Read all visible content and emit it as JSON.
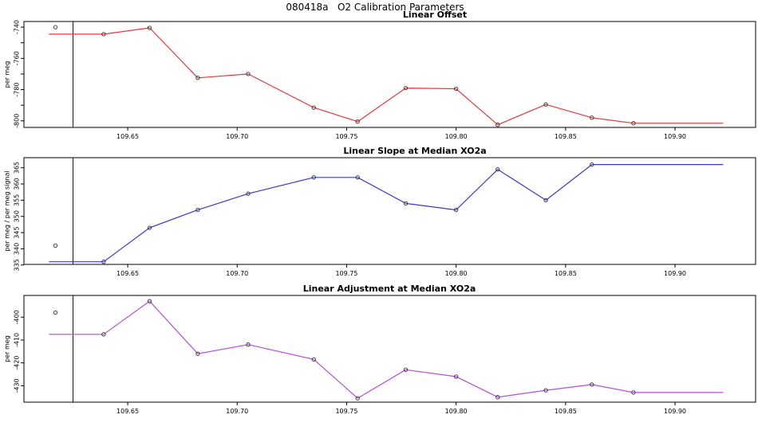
{
  "page": {
    "title": "080418a   O2 Calibration Parameters"
  },
  "x_axis": {
    "xlim": [
      109.6026,
      109.9368
    ],
    "ticks": [
      109.65,
      109.7,
      109.75,
      109.8,
      109.85,
      109.9
    ],
    "tick_labels": [
      "109.65",
      "109.70",
      "109.75",
      "109.80",
      "109.85",
      "109.90"
    ]
  },
  "colors": {
    "offset_red": "#e43a3a",
    "slope_blue": "#3b3bd0",
    "adjustment_purple": "#b44fd9",
    "axis_black": "#000000",
    "marker_outline": "#333333"
  },
  "chart_data": [
    {
      "type": "line",
      "title": "Linear Offset",
      "ylabel": "per meg",
      "line_color": "#e43a3a",
      "marker": "open-circle",
      "ylim": [
        -804.2,
        -736.4
      ],
      "yticks": [
        -800,
        -780,
        -760,
        -740
      ],
      "ytick_labels": [
        "-800",
        "-780",
        "-760",
        "-740"
      ],
      "yticks_minor": [
        -790,
        -770,
        -750
      ],
      "x": [
        109.639,
        109.66,
        109.682,
        109.705,
        109.735,
        109.755,
        109.777,
        109.8,
        109.819,
        109.841,
        109.862,
        109.881
      ],
      "y": [
        -744.5,
        -740.5,
        -772.5,
        -770,
        -791.5,
        -800.5,
        -779,
        -779.5,
        -802.5,
        -789.5,
        -798,
        -801.5
      ],
      "line_start": {
        "x": 109.614,
        "y": -744.5
      },
      "line_end": {
        "x": 109.922,
        "y": -801.5
      },
      "outlier_point": {
        "x": 109.617,
        "y": -740
      },
      "vline_x": 109.625
    },
    {
      "type": "line",
      "title": "Linear Slope at Median XO2a",
      "ylabel": "per meg / per meg signal",
      "line_color": "#3b3bd0",
      "marker": "open-circle",
      "ylim": [
        335.2,
        368.1
      ],
      "yticks": [
        335,
        340,
        345,
        350,
        355,
        360,
        365
      ],
      "ytick_labels": [
        "335",
        "340",
        "345",
        "350",
        "355",
        "360",
        "365"
      ],
      "yticks_minor": [],
      "x": [
        109.639,
        109.66,
        109.682,
        109.705,
        109.735,
        109.755,
        109.777,
        109.8,
        109.819,
        109.841,
        109.862
      ],
      "y": [
        336,
        346.5,
        352,
        357,
        362,
        362,
        354,
        352,
        364.5,
        355,
        366
      ],
      "line_start": {
        "x": 109.614,
        "y": 336
      },
      "line_end": {
        "x": 109.922,
        "y": 366
      },
      "outlier_point": {
        "x": 109.617,
        "y": 341
      },
      "vline_x": 109.625
    },
    {
      "type": "line",
      "title": "Linear Adjustment at Median XO2a",
      "ylabel": "per meg",
      "line_color": "#b44fd9",
      "marker": "open-circle",
      "ylim": [
        -437.2,
        -390.5
      ],
      "yticks": [
        -430,
        -420,
        -410,
        -400
      ],
      "ytick_labels": [
        "-430",
        "-420",
        "-410",
        "-400"
      ],
      "yticks_minor": [],
      "x": [
        109.639,
        109.66,
        109.682,
        109.705,
        109.735,
        109.755,
        109.777,
        109.8,
        109.819,
        109.841,
        109.862,
        109.881
      ],
      "y": [
        -407.5,
        -393,
        -416,
        -412,
        -418.5,
        -435.5,
        -423,
        -426,
        -435,
        -432,
        -429.5,
        -433
      ],
      "line_start": {
        "x": 109.614,
        "y": -407.5
      },
      "line_end": {
        "x": 109.922,
        "y": -433
      },
      "outlier_point": {
        "x": 109.617,
        "y": -398
      },
      "vline_x": 109.625
    }
  ]
}
